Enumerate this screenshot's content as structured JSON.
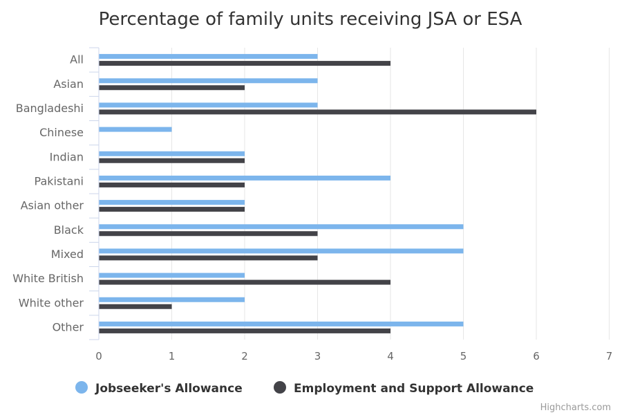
{
  "chart_data": {
    "type": "bar",
    "orientation": "horizontal",
    "title": "Percentage of family units receiving JSA or ESA",
    "categories": [
      "All",
      "Asian",
      "Bangladeshi",
      "Chinese",
      "Indian",
      "Pakistani",
      "Asian other",
      "Black",
      "Mixed",
      "White British",
      "White other",
      "Other"
    ],
    "series": [
      {
        "name": "Jobseeker's Allowance",
        "color": "#7cb5ec",
        "values": [
          3,
          3,
          3,
          1,
          2,
          4,
          2,
          5,
          5,
          2,
          2,
          5
        ]
      },
      {
        "name": "Employment and Support Allowance",
        "color": "#434348",
        "values": [
          4,
          2,
          6,
          null,
          2,
          2,
          2,
          3,
          3,
          4,
          1,
          4
        ]
      }
    ],
    "xlim": [
      0,
      7
    ],
    "x_ticks": [
      "0",
      "1",
      "2",
      "3",
      "4",
      "5",
      "6",
      "7"
    ],
    "grid": true,
    "legend": "bottom-center"
  },
  "credit": "Highcharts.com"
}
